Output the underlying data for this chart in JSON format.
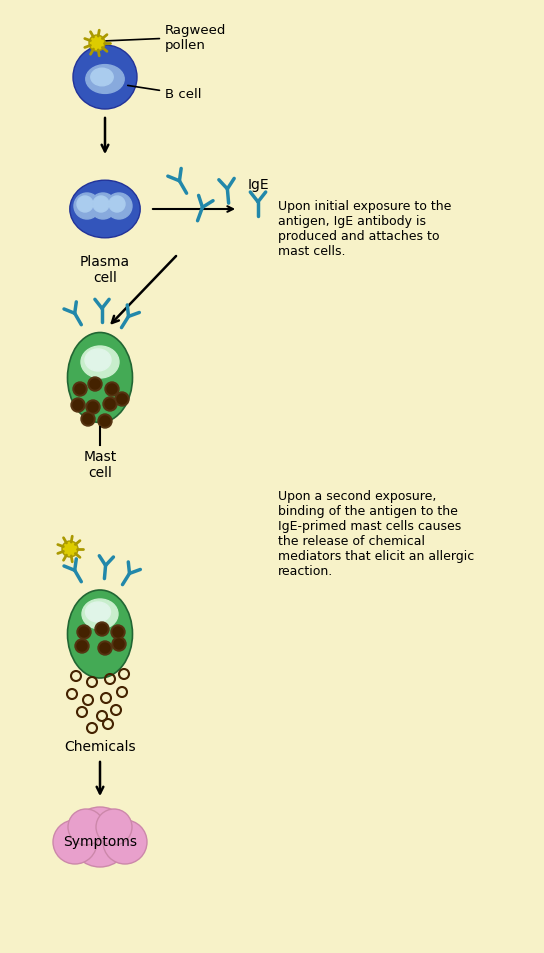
{
  "bg_color": "#f7f2c8",
  "text_color": "#000000",
  "label_ragweed": "Ragweed\npollen",
  "label_bcell": "B cell",
  "label_plasma": "Plasma\ncell",
  "label_ige": "IgE",
  "label_mast": "Mast\ncell",
  "label_chemicals": "Chemicals",
  "label_symptoms": "Symptoms",
  "text_initial": "Upon initial exposure to the\nantigen, IgE antibody is\nproduced and attaches to\nmast cells.",
  "text_second": "Upon a second exposure,\nbinding of the antigen to the\nIgE-primed mast cells causes\nthe release of chemical\nmediators that elicit an allergic\nreaction.",
  "blue_dark": "#3355bb",
  "blue_mid": "#4477cc",
  "blue_light": "#88aadd",
  "blue_lighter": "#aaccee",
  "cyan_antibody": "#2288aa",
  "green_mast": "#44aa55",
  "green_lighter": "#c8eecc",
  "green_nucleus": "#aaddaa",
  "yellow_pollen": "#ddcc00",
  "yellow_dark": "#aa9900",
  "pink_symptoms": "#e8a0cc",
  "brown_granule": "#442200",
  "granule_outer": "#553311"
}
